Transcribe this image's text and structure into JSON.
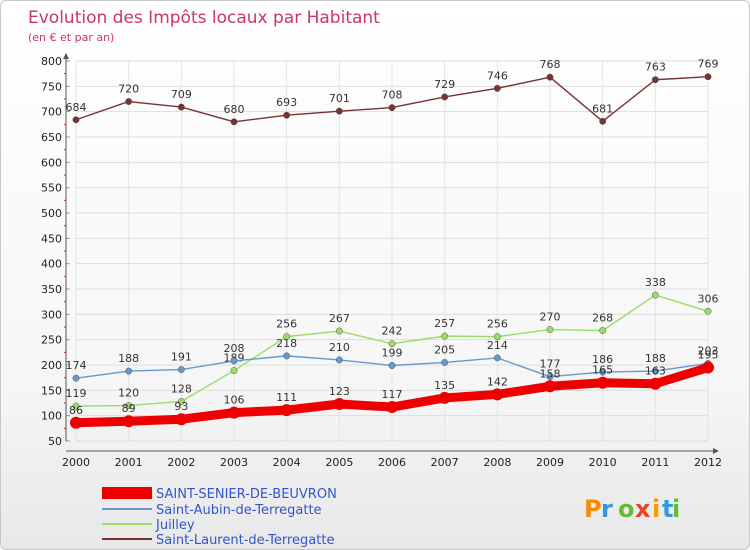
{
  "brand": "Proxiti",
  "chart_data": {
    "type": "line",
    "title": "Evolution des Impôts locaux par Habitant",
    "subtitle": "(en € et par an)",
    "xlabel": "",
    "ylabel": "",
    "ylim": [
      50,
      800
    ],
    "yticks": [
      50,
      100,
      150,
      200,
      250,
      300,
      350,
      400,
      450,
      500,
      550,
      600,
      650,
      700,
      750,
      800
    ],
    "x": [
      "2000",
      "2001",
      "2002",
      "2003",
      "2004",
      "2005",
      "2006",
      "2007",
      "2008",
      "2009",
      "2010",
      "2011",
      "2012"
    ],
    "legend_position": "bottom-left",
    "series": [
      {
        "name": "SAINT-SENIER-DE-BEUVRON",
        "color": "#ee0000",
        "values": [
          86,
          89,
          93,
          106,
          111,
          123,
          117,
          135,
          142,
          158,
          165,
          163,
          195
        ]
      },
      {
        "name": "Saint-Aubin-de-Terregatte",
        "color": "#6699cc",
        "values": [
          174,
          188,
          191,
          208,
          218,
          210,
          199,
          205,
          214,
          177,
          186,
          188,
          203
        ]
      },
      {
        "name": "Juilley",
        "color": "#99dd66",
        "values": [
          119,
          120,
          128,
          189,
          256,
          267,
          242,
          257,
          256,
          270,
          268,
          338,
          306
        ]
      },
      {
        "name": "Saint-Laurent-de-Terregatte",
        "color": "#773333",
        "values": [
          684,
          720,
          709,
          680,
          693,
          701,
          708,
          729,
          746,
          768,
          681,
          763,
          769
        ]
      }
    ]
  }
}
